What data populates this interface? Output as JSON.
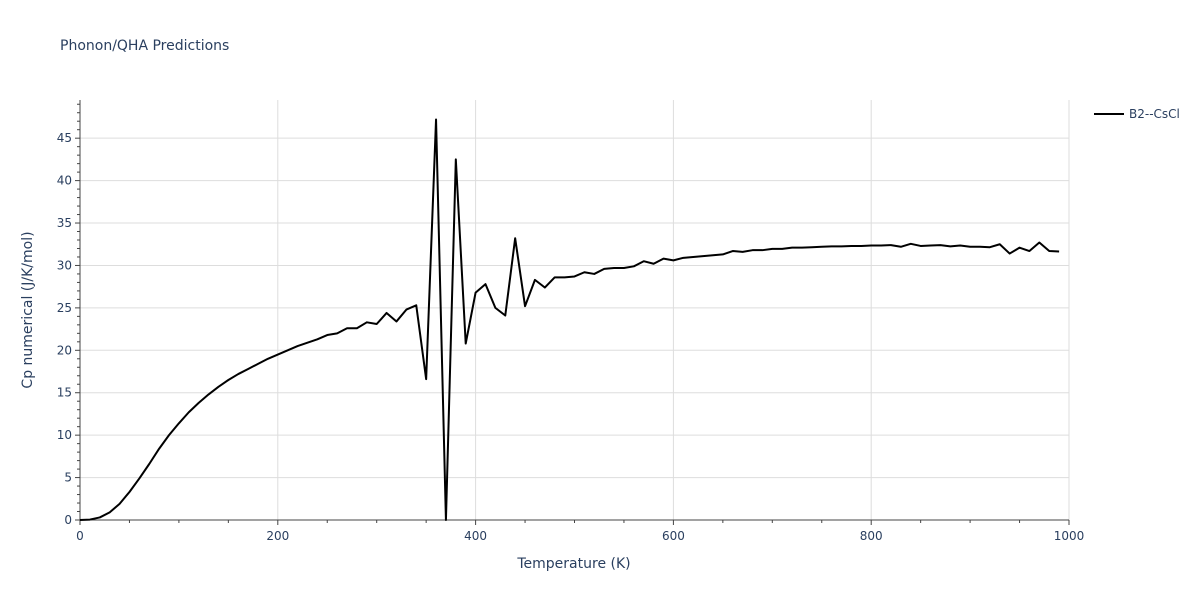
{
  "chart_data": {
    "type": "line",
    "title": "Phonon/QHA Predictions",
    "xlabel": "Temperature (K)",
    "ylabel": "Cp numerical (J/K/mol)",
    "xlim": [
      0,
      1000
    ],
    "ylim": [
      0,
      49.5
    ],
    "xticks": [
      0,
      200,
      400,
      600,
      800,
      1000
    ],
    "xtick_labels": [
      "0",
      "200",
      "400",
      "600",
      "800",
      "1000"
    ],
    "yticks": [
      0,
      5,
      10,
      15,
      20,
      25,
      30,
      35,
      40,
      45
    ],
    "ytick_labels": [
      "0",
      "5",
      "10",
      "15",
      "20",
      "25",
      "30",
      "35",
      "40",
      "45"
    ],
    "grid": true,
    "legend_position": "top-right",
    "series": [
      {
        "name": "B2--CsCl",
        "color": "#000000",
        "x": [
          0,
          10,
          20,
          30,
          40,
          50,
          60,
          70,
          80,
          90,
          100,
          110,
          120,
          130,
          140,
          150,
          160,
          170,
          180,
          190,
          200,
          210,
          220,
          230,
          240,
          250,
          260,
          270,
          280,
          290,
          300,
          310,
          320,
          330,
          340,
          350,
          360,
          370,
          380,
          390,
          400,
          410,
          420,
          430,
          440,
          450,
          460,
          470,
          480,
          490,
          500,
          510,
          520,
          530,
          540,
          550,
          560,
          570,
          580,
          590,
          600,
          610,
          620,
          630,
          640,
          650,
          660,
          670,
          680,
          690,
          700,
          710,
          720,
          730,
          740,
          750,
          760,
          770,
          780,
          790,
          800,
          810,
          820,
          830,
          840,
          850,
          860,
          870,
          880,
          890,
          900,
          910,
          920,
          930,
          940,
          950,
          960,
          970,
          980,
          990
        ],
        "y": [
          0,
          0.05,
          0.3,
          0.9,
          1.9,
          3.3,
          4.9,
          6.6,
          8.4,
          10.0,
          11.4,
          12.7,
          13.8,
          14.8,
          15.7,
          16.5,
          17.2,
          17.8,
          18.4,
          19.0,
          19.5,
          20.0,
          20.5,
          20.9,
          21.3,
          21.8,
          22.0,
          22.6,
          22.6,
          23.3,
          23.1,
          24.4,
          23.4,
          24.8,
          25.3,
          16.6,
          47.2,
          0.0,
          42.5,
          20.8,
          26.8,
          27.8,
          25.0,
          24.1,
          33.2,
          25.2,
          28.3,
          27.4,
          28.6,
          28.6,
          28.7,
          29.2,
          29.0,
          29.6,
          29.7,
          29.7,
          29.9,
          30.5,
          30.2,
          30.8,
          30.6,
          30.9,
          31.0,
          31.1,
          31.2,
          31.3,
          31.7,
          31.6,
          31.8,
          31.8,
          31.95,
          31.95,
          32.1,
          32.1,
          32.15,
          32.2,
          32.25,
          32.25,
          32.3,
          32.3,
          32.35,
          32.35,
          32.4,
          32.2,
          32.55,
          32.3,
          32.35,
          32.4,
          32.25,
          32.35,
          32.2,
          32.2,
          32.15,
          32.5,
          31.4,
          32.1,
          31.7,
          32.7,
          31.7,
          31.65
        ]
      }
    ]
  }
}
